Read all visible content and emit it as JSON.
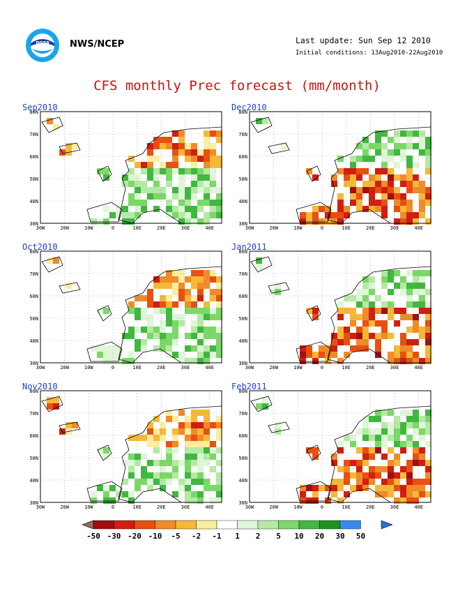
{
  "header": {
    "organization": "NWS/NCEP",
    "last_update": "Last update: Sun Sep 12 2010",
    "initial_conditions": "Initial conditions: 13Aug2010-22Aug2010",
    "logo_icon": "noaa-logo-icon"
  },
  "title": "CFS monthly Prec forecast (mm/month)",
  "axes": {
    "lat_labels": [
      "80N",
      "70N",
      "60N",
      "50N",
      "40N",
      "30N"
    ],
    "lon_labels": [
      "30W",
      "20W",
      "10W",
      "0",
      "10E",
      "20E",
      "30E",
      "40E"
    ]
  },
  "panels": [
    {
      "month": "Sep2010"
    },
    {
      "month": "Dec2010"
    },
    {
      "month": "Oct2010"
    },
    {
      "month": "Jan2011"
    },
    {
      "month": "Nov2010"
    },
    {
      "month": "Feb2011"
    }
  ],
  "colorbar": {
    "labels": [
      "-50",
      "-30",
      "-20",
      "-10",
      "-5",
      "-2",
      "-1",
      "1",
      "2",
      "5",
      "10",
      "20",
      "30",
      "50"
    ],
    "colors": [
      "#9a6a5a",
      "#a01010",
      "#d01e10",
      "#e85010",
      "#f08c28",
      "#f5b838",
      "#faeea0",
      "#ffffff",
      "#e0f6d8",
      "#b4eaa4",
      "#7cd868",
      "#40b840",
      "#1e9420",
      "#3a8aee",
      "#2e6cdc"
    ]
  },
  "palette": {
    "title_red": "#d01010",
    "label_blue": "#2040d0"
  }
}
